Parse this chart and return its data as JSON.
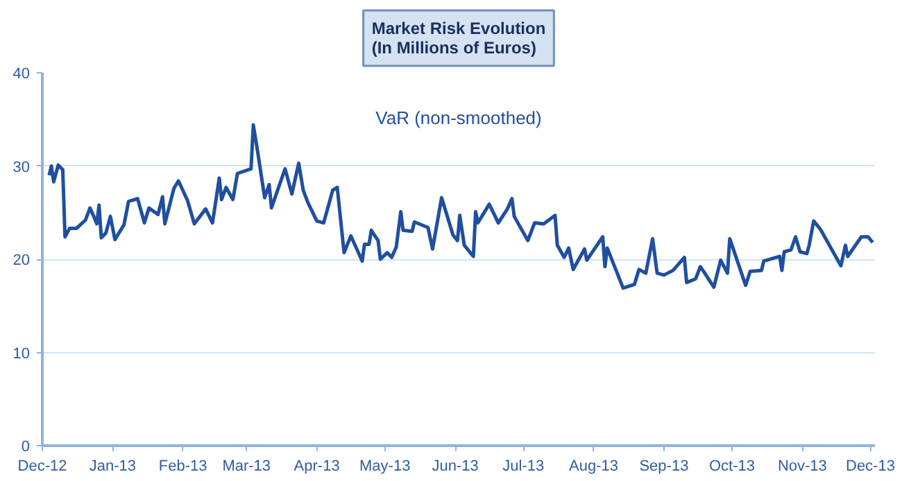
{
  "chart_data": {
    "type": "line",
    "title": "Market Risk Evolution",
    "subtitle": "(In Millions of Euros)",
    "x": [
      "2012-12-04",
      "2012-12-05",
      "2012-12-06",
      "2012-12-08",
      "2012-12-10",
      "2012-12-11",
      "2012-12-13",
      "2012-12-16",
      "2012-12-20",
      "2012-12-22",
      "2012-12-24",
      "2012-12-25",
      "2012-12-26",
      "2012-12-27",
      "2012-12-29",
      "2012-12-31",
      "2013-01-02",
      "2013-01-06",
      "2013-01-08",
      "2013-01-12",
      "2013-01-15",
      "2013-01-17",
      "2013-01-21",
      "2013-01-23",
      "2013-01-24",
      "2013-01-28",
      "2013-01-30",
      "2013-02-03",
      "2013-02-06",
      "2013-02-11",
      "2013-02-14",
      "2013-02-17",
      "2013-02-18",
      "2013-02-20",
      "2013-02-23",
      "2013-02-25",
      "2013-03-03",
      "2013-03-04",
      "2013-03-06",
      "2013-03-09",
      "2013-03-11",
      "2013-03-12",
      "2013-03-18",
      "2013-03-21",
      "2013-03-24",
      "2013-03-26",
      "2013-03-28",
      "2013-04-01",
      "2013-04-04",
      "2013-04-08",
      "2013-04-10",
      "2013-04-13",
      "2013-04-16",
      "2013-04-21",
      "2013-04-22",
      "2013-04-24",
      "2013-04-25",
      "2013-04-28",
      "2013-04-29",
      "2013-05-02",
      "2013-05-04",
      "2013-05-06",
      "2013-05-08",
      "2013-05-09",
      "2013-05-13",
      "2013-05-14",
      "2013-05-20",
      "2013-05-22",
      "2013-05-26",
      "2013-05-31",
      "2013-06-02",
      "2013-06-03",
      "2013-06-05",
      "2013-06-09",
      "2013-06-10",
      "2013-06-11",
      "2013-06-16",
      "2013-06-20",
      "2013-06-24",
      "2013-06-26",
      "2013-06-27",
      "2013-07-03",
      "2013-07-06",
      "2013-07-10",
      "2013-07-15",
      "2013-07-16",
      "2013-07-19",
      "2013-07-21",
      "2013-07-23",
      "2013-07-28",
      "2013-07-29",
      "2013-08-05",
      "2013-08-06",
      "2013-08-07",
      "2013-08-14",
      "2013-08-19",
      "2013-08-21",
      "2013-08-24",
      "2013-08-27",
      "2013-08-29",
      "2013-09-01",
      "2013-09-05",
      "2013-09-10",
      "2013-09-11",
      "2013-09-15",
      "2013-09-17",
      "2013-09-19",
      "2013-09-23",
      "2013-09-26",
      "2013-09-29",
      "2013-09-30",
      "2013-10-07",
      "2013-10-09",
      "2013-10-14",
      "2013-10-15",
      "2013-10-22",
      "2013-10-23",
      "2013-10-24",
      "2013-10-27",
      "2013-10-29",
      "2013-10-31",
      "2013-11-03",
      "2013-11-04",
      "2013-11-06",
      "2013-11-09",
      "2013-11-18",
      "2013-11-20",
      "2013-11-21",
      "2013-11-27",
      "2013-11-30",
      "2013-12-02"
    ],
    "series": [
      {
        "name": "VaR (non-smoothed)",
        "color": "#1f4f9e",
        "values": [
          29.0,
          30.0,
          28.3,
          30.1,
          29.6,
          22.4,
          23.3,
          23.3,
          24.2,
          25.5,
          24.4,
          23.8,
          25.8,
          22.3,
          22.8,
          24.6,
          22.1,
          23.7,
          26.2,
          26.5,
          23.9,
          25.5,
          24.8,
          26.7,
          23.8,
          27.6,
          28.4,
          26.3,
          23.8,
          25.4,
          23.9,
          28.7,
          26.4,
          27.7,
          26.4,
          29.2,
          29.7,
          34.4,
          31.4,
          26.6,
          28.0,
          25.5,
          29.7,
          27.0,
          30.3,
          27.4,
          26.1,
          24.1,
          23.9,
          27.4,
          27.7,
          20.7,
          22.5,
          19.8,
          21.6,
          21.6,
          23.1,
          22.0,
          20.0,
          20.7,
          20.2,
          21.3,
          25.1,
          23.1,
          23.0,
          24.0,
          23.4,
          21.1,
          26.6,
          22.6,
          22.0,
          24.7,
          21.5,
          20.3,
          25.1,
          23.9,
          25.9,
          23.9,
          25.4,
          26.5,
          24.6,
          22.0,
          23.9,
          23.8,
          24.7,
          21.5,
          20.2,
          21.2,
          18.9,
          21.1,
          19.9,
          22.4,
          19.2,
          21.2,
          16.9,
          17.3,
          18.9,
          18.5,
          22.2,
          18.5,
          18.3,
          18.8,
          20.2,
          17.5,
          17.9,
          19.2,
          18.5,
          17.0,
          19.9,
          18.5,
          22.2,
          17.2,
          18.7,
          18.8,
          19.8,
          20.3,
          18.8,
          20.8,
          21.0,
          22.4,
          20.8,
          20.6,
          21.5,
          24.1,
          23.2,
          19.3,
          21.5,
          20.3,
          22.4,
          22.4,
          21.8
        ]
      }
    ],
    "xlim": [
      "2012-12-01",
      "2013-12-03"
    ],
    "xticks": [
      {
        "value": "2012-12-01",
        "label": "Dec-12"
      },
      {
        "value": "2013-01-01",
        "label": "Jan-13"
      },
      {
        "value": "2013-02-01",
        "label": "Feb-13"
      },
      {
        "value": "2013-03-01",
        "label": "Mar-13"
      },
      {
        "value": "2013-04-01",
        "label": "Apr-13"
      },
      {
        "value": "2013-05-01",
        "label": "May-13"
      },
      {
        "value": "2013-06-01",
        "label": "Jun-13"
      },
      {
        "value": "2013-07-01",
        "label": "Jul-13"
      },
      {
        "value": "2013-08-01",
        "label": "Aug-13"
      },
      {
        "value": "2013-09-01",
        "label": "Sep-13"
      },
      {
        "value": "2013-10-01",
        "label": "Oct-13"
      },
      {
        "value": "2013-11-01",
        "label": "Nov-13"
      },
      {
        "value": "2013-12-01",
        "label": "Dec-13"
      }
    ],
    "ylim": [
      0,
      40
    ],
    "yticks": [
      0,
      10,
      20,
      30,
      40
    ],
    "grid": "y",
    "legend": false,
    "marker": "none",
    "line_style": "solid"
  }
}
